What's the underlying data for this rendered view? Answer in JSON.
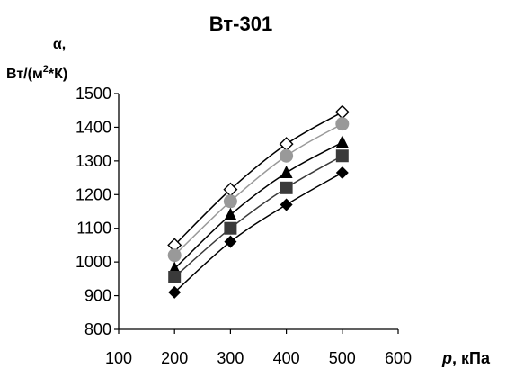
{
  "chart_data": {
    "type": "line",
    "title": "Вт-301",
    "ylabel": {
      "symbol": "α",
      "symbol_suffix": ",",
      "unit_prefix": "Вт/(м",
      "unit_exponent": "2",
      "unit_suffix": "*К)"
    },
    "xlabel": {
      "symbol": "p",
      "unit": ", кПа"
    },
    "xlim": [
      100,
      600
    ],
    "ylim": [
      800,
      1500
    ],
    "xticks": [
      100,
      200,
      300,
      400,
      500,
      600
    ],
    "yticks": [
      800,
      900,
      1000,
      1100,
      1200,
      1300,
      1400,
      1500
    ],
    "grid": false,
    "legend": "none",
    "x": [
      200,
      300,
      400,
      500
    ],
    "series": [
      {
        "marker": "diamond-open",
        "line_color": "#000000",
        "marker_color": "#000000",
        "values": [
          1050,
          1215,
          1350,
          1445
        ]
      },
      {
        "marker": "circle",
        "line_color": "#999999",
        "marker_color": "#999999",
        "values": [
          1020,
          1180,
          1315,
          1410
        ]
      },
      {
        "marker": "triangle",
        "line_color": "#000000",
        "marker_color": "#000000",
        "values": [
          980,
          1140,
          1265,
          1355
        ]
      },
      {
        "marker": "square",
        "line_color": "#3a3a3a",
        "marker_color": "#3a3a3a",
        "values": [
          955,
          1100,
          1220,
          1315
        ]
      },
      {
        "marker": "diamond",
        "line_color": "#000000",
        "marker_color": "#000000",
        "values": [
          910,
          1060,
          1170,
          1265
        ]
      }
    ]
  }
}
